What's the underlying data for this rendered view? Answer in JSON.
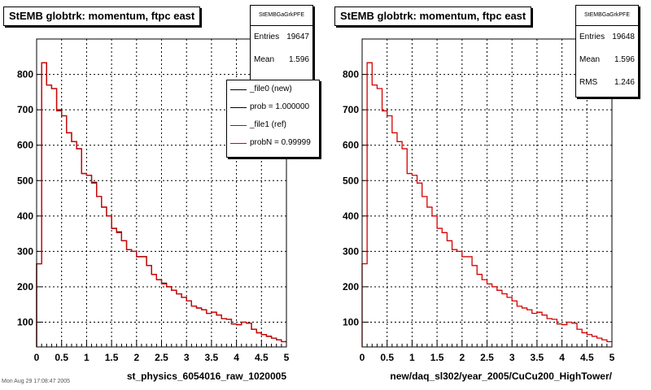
{
  "footer_text": "Mon Aug 29 17:08:47 2005",
  "colors": {
    "new": "#000000",
    "ref": "#d40000",
    "frame": "#000000"
  },
  "chart_data": [
    {
      "type": "line",
      "title": "StEMB globtrk: momentum, ftpc east",
      "xlabel": "st_physics_6054016_raw_1020005",
      "ylabel": "",
      "xlim": [
        0,
        5
      ],
      "ylim": [
        30,
        900
      ],
      "x_ticks": [
        "0",
        "0.5",
        "1",
        "1.5",
        "2",
        "2.5",
        "3",
        "3.5",
        "4",
        "4.5",
        "5"
      ],
      "y_ticks": [
        "100",
        "200",
        "300",
        "400",
        "500",
        "600",
        "700",
        "800"
      ],
      "grid": true,
      "legend_position": "top-right",
      "stats": {
        "name": "StEMBGaGrkPFE",
        "rows": [
          {
            "label": "Entries",
            "value": "19647"
          },
          {
            "label": "Mean",
            "value": "1.596"
          }
        ]
      },
      "legend": [
        {
          "label": "_file0 (new)",
          "color": "#000000"
        },
        {
          "label": "prob = 1.000000",
          "color": "#000000"
        },
        {
          "label": "_file1 (ref)",
          "color": "#d40000"
        },
        {
          "label": "probN = 0.99999",
          "color": "#d40000"
        }
      ],
      "bin_edges_start": 0,
      "bin_width": 0.1,
      "series": [
        {
          "name": "_file0 (new)",
          "color": "#000000",
          "values": [
            265,
            833,
            770,
            760,
            700,
            683,
            635,
            610,
            590,
            520,
            515,
            495,
            455,
            425,
            400,
            365,
            355,
            330,
            305,
            300,
            285,
            285,
            260,
            235,
            220,
            210,
            200,
            190,
            180,
            170,
            160,
            145,
            140,
            135,
            125,
            128,
            120,
            110,
            108,
            95,
            93,
            100,
            97,
            80,
            70,
            65,
            60,
            55,
            50,
            45
          ]
        },
        {
          "name": "_file1 (ref)",
          "color": "#d40000",
          "values": [
            265,
            833,
            770,
            760,
            697,
            683,
            635,
            610,
            590,
            520,
            515,
            493,
            455,
            425,
            400,
            365,
            353,
            330,
            305,
            300,
            285,
            285,
            260,
            235,
            220,
            208,
            200,
            190,
            180,
            170,
            160,
            145,
            140,
            135,
            125,
            128,
            120,
            110,
            108,
            95,
            93,
            100,
            97,
            80,
            70,
            65,
            60,
            55,
            50,
            45
          ]
        }
      ]
    },
    {
      "type": "line",
      "title": "StEMB globtrk: momentum, ftpc east",
      "xlabel": "new/daq_sl302/year_2005/CuCu200_HighTower/",
      "ylabel": "",
      "xlim": [
        0,
        5
      ],
      "ylim": [
        30,
        900
      ],
      "x_ticks": [
        "0",
        "0.5",
        "1",
        "1.5",
        "2",
        "2.5",
        "3",
        "3.5",
        "4",
        "4.5",
        "5"
      ],
      "y_ticks": [
        "100",
        "200",
        "300",
        "400",
        "500",
        "600",
        "700",
        "800"
      ],
      "grid": true,
      "stats": {
        "name": "StEMBGaGrkPFE",
        "rows": [
          {
            "label": "Entries",
            "value": "19648"
          },
          {
            "label": "Mean",
            "value": "1.596"
          },
          {
            "label": "RMS",
            "value": "1.246"
          }
        ]
      },
      "bin_edges_start": 0,
      "bin_width": 0.1,
      "series": [
        {
          "color": "#d40000",
          "values": [
            265,
            833,
            770,
            760,
            697,
            683,
            635,
            610,
            590,
            520,
            515,
            493,
            455,
            425,
            400,
            365,
            353,
            330,
            305,
            300,
            285,
            285,
            260,
            235,
            220,
            208,
            200,
            190,
            180,
            170,
            160,
            145,
            140,
            135,
            125,
            128,
            120,
            110,
            108,
            95,
            93,
            100,
            97,
            80,
            70,
            65,
            60,
            55,
            50,
            45
          ]
        }
      ]
    }
  ]
}
